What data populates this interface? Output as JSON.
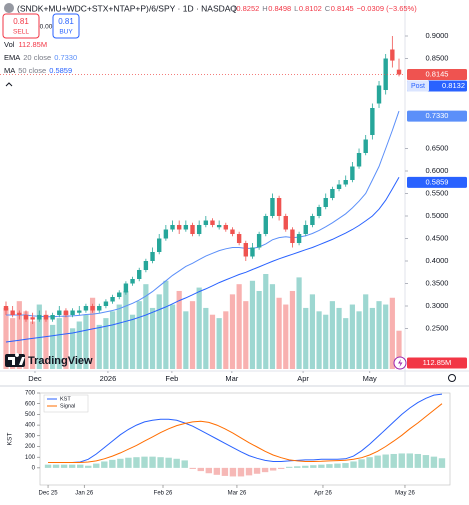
{
  "header": {
    "symbol": "(SNDK+MU+WDC+STX+NTAP+P)/6/SPY · 1D · NASDAQ",
    "ohlc_labels": [
      "O",
      "H",
      "L",
      "C"
    ],
    "change": "−0.0309 (−3.65%)",
    "sell": {
      "price": "0.81",
      "label": "SELL"
    },
    "spread": "0.00",
    "buy": {
      "price": "0.81",
      "label": "BUY"
    }
  },
  "branding": "TradingView",
  "chart_data": [
    {
      "type": "candlestick",
      "open": [
        0.3,
        0.29,
        0.285,
        0.28,
        0.275,
        0.27,
        0.28,
        0.27,
        0.28,
        0.29,
        0.28,
        0.285,
        0.29,
        0.3,
        0.29,
        0.3,
        0.31,
        0.32,
        0.33,
        0.35,
        0.36,
        0.38,
        0.4,
        0.42,
        0.45,
        0.47,
        0.48,
        0.47,
        0.48,
        0.46,
        0.48,
        0.49,
        0.475,
        0.48,
        0.47,
        0.46,
        0.44,
        0.41,
        0.43,
        0.46,
        0.5,
        0.54,
        0.5,
        0.47,
        0.44,
        0.46,
        0.48,
        0.5,
        0.52,
        0.54,
        0.56,
        0.57,
        0.58,
        0.61,
        0.64,
        0.68,
        0.75,
        0.78,
        0.87,
        0.8252
      ],
      "high": [
        0.31,
        0.3,
        0.29,
        0.29,
        0.285,
        0.29,
        0.29,
        0.285,
        0.3,
        0.295,
        0.295,
        0.3,
        0.305,
        0.305,
        0.305,
        0.315,
        0.325,
        0.335,
        0.355,
        0.365,
        0.385,
        0.405,
        0.43,
        0.46,
        0.48,
        0.49,
        0.49,
        0.49,
        0.485,
        0.49,
        0.5,
        0.495,
        0.49,
        0.485,
        0.475,
        0.465,
        0.445,
        0.44,
        0.465,
        0.505,
        0.55,
        0.545,
        0.505,
        0.475,
        0.465,
        0.49,
        0.505,
        0.525,
        0.55,
        0.565,
        0.58,
        0.59,
        0.62,
        0.65,
        0.68,
        0.75,
        0.8,
        0.86,
        0.9,
        0.8498
      ],
      "low": [
        0.28,
        0.275,
        0.27,
        0.265,
        0.26,
        0.265,
        0.265,
        0.265,
        0.275,
        0.275,
        0.275,
        0.28,
        0.285,
        0.285,
        0.285,
        0.295,
        0.305,
        0.315,
        0.325,
        0.345,
        0.355,
        0.375,
        0.395,
        0.415,
        0.445,
        0.465,
        0.46,
        0.465,
        0.455,
        0.455,
        0.475,
        0.475,
        0.47,
        0.465,
        0.455,
        0.435,
        0.4,
        0.405,
        0.425,
        0.455,
        0.495,
        0.49,
        0.465,
        0.43,
        0.435,
        0.455,
        0.475,
        0.495,
        0.515,
        0.535,
        0.555,
        0.565,
        0.575,
        0.605,
        0.635,
        0.67,
        0.74,
        0.77,
        0.83,
        0.8102
      ],
      "close": [
        0.29,
        0.28,
        0.28,
        0.27,
        0.27,
        0.28,
        0.27,
        0.28,
        0.29,
        0.28,
        0.29,
        0.29,
        0.3,
        0.29,
        0.3,
        0.31,
        0.32,
        0.33,
        0.35,
        0.36,
        0.38,
        0.4,
        0.42,
        0.45,
        0.47,
        0.48,
        0.47,
        0.48,
        0.46,
        0.48,
        0.49,
        0.48,
        0.48,
        0.47,
        0.46,
        0.44,
        0.41,
        0.43,
        0.46,
        0.5,
        0.54,
        0.5,
        0.47,
        0.44,
        0.46,
        0.48,
        0.5,
        0.52,
        0.54,
        0.56,
        0.57,
        0.58,
        0.61,
        0.64,
        0.67,
        0.74,
        0.79,
        0.85,
        0.8454,
        0.8145
      ],
      "up_color": "#26a69a",
      "down_color": "#ef5350",
      "volume": {
        "name": "Vol",
        "color": "#f23645",
        "values": [
          180,
          150,
          200,
          170,
          140,
          190,
          160,
          130,
          150,
          170,
          120,
          140,
          160,
          210,
          130,
          150,
          170,
          190,
          230,
          160,
          200,
          250,
          180,
          220,
          260,
          190,
          230,
          170,
          200,
          240,
          180,
          160,
          150,
          170,
          220,
          250,
          200,
          260,
          230,
          280,
          250,
          210,
          190,
          230,
          270,
          180,
          220,
          170,
          160,
          200,
          180,
          150,
          190,
          170,
          220,
          180,
          200,
          190,
          210,
          112.85
        ],
        "value_labels": [
          null,
          null,
          null,
          null,
          null,
          null,
          null,
          null,
          null,
          null,
          null,
          null,
          null,
          null,
          null,
          null,
          null,
          null,
          null,
          null,
          null,
          null,
          null,
          null,
          null,
          null,
          null,
          null,
          null,
          null,
          null,
          null,
          null,
          null,
          null,
          null,
          null,
          null,
          null,
          null,
          null,
          null,
          null,
          null,
          null,
          null,
          null,
          null,
          null,
          null,
          null,
          null,
          null,
          null,
          null,
          null,
          null,
          null,
          null,
          "112.85M"
        ]
      },
      "series": [
        {
          "name": "EMA",
          "params": "20 close",
          "color": "#5b8ff9",
          "values": [
            0.28,
            0.28,
            0.28,
            0.28,
            0.278,
            0.277,
            0.276,
            0.276,
            0.277,
            0.277,
            0.278,
            0.279,
            0.281,
            0.282,
            0.284,
            0.287,
            0.29,
            0.294,
            0.3,
            0.306,
            0.313,
            0.322,
            0.332,
            0.344,
            0.356,
            0.368,
            0.378,
            0.388,
            0.395,
            0.403,
            0.411,
            0.417,
            0.423,
            0.427,
            0.43,
            0.43,
            0.428,
            0.428,
            0.431,
            0.438,
            0.447,
            0.452,
            0.454,
            0.452,
            0.453,
            0.456,
            0.461,
            0.468,
            0.476,
            0.485,
            0.495,
            0.505,
            0.518,
            0.533,
            0.55,
            0.58,
            0.61,
            0.65,
            0.69,
            0.733
          ],
          "value_labels": [
            null,
            null,
            null,
            null,
            null,
            null,
            null,
            null,
            null,
            null,
            null,
            null,
            null,
            null,
            null,
            null,
            null,
            null,
            null,
            null,
            null,
            null,
            null,
            null,
            null,
            null,
            null,
            null,
            null,
            null,
            null,
            null,
            null,
            null,
            null,
            null,
            null,
            null,
            null,
            null,
            null,
            null,
            null,
            null,
            null,
            null,
            null,
            null,
            null,
            null,
            null,
            null,
            null,
            null,
            null,
            null,
            null,
            null,
            null,
            "0.7330"
          ]
        },
        {
          "name": "MA",
          "params": "50 close",
          "color": "#2962ff",
          "values": [
            0.22,
            0.222,
            0.224,
            0.226,
            0.228,
            0.23,
            0.232,
            0.234,
            0.236,
            0.238,
            0.24,
            0.243,
            0.246,
            0.249,
            0.252,
            0.255,
            0.258,
            0.262,
            0.266,
            0.27,
            0.275,
            0.28,
            0.286,
            0.292,
            0.298,
            0.305,
            0.312,
            0.318,
            0.325,
            0.332,
            0.338,
            0.345,
            0.352,
            0.358,
            0.364,
            0.37,
            0.375,
            0.381,
            0.387,
            0.393,
            0.399,
            0.405,
            0.41,
            0.415,
            0.42,
            0.425,
            0.43,
            0.436,
            0.442,
            0.448,
            0.455,
            0.462,
            0.47,
            0.479,
            0.489,
            0.5,
            0.515,
            0.535,
            0.56,
            0.5859
          ]
        }
      ],
      "post": {
        "label": "Post",
        "value": 0.8132,
        "color": "#2962ff"
      },
      "xlim": [
        -0.9,
        59.9
      ],
      "ylim": [
        0.16,
        0.94
      ],
      "yticks": [
        {
          "value": 0.25,
          "label": "0.2500"
        },
        {
          "value": 0.3,
          "label": "0.3000"
        },
        {
          "value": 0.35,
          "label": "0.3500"
        },
        {
          "value": 0.4,
          "label": "0.4000"
        },
        {
          "value": 0.45,
          "label": "0.4500"
        },
        {
          "value": 0.5,
          "label": "0.5000"
        },
        {
          "value": 0.55,
          "label": "0.5500"
        },
        {
          "value": 0.6,
          "label": "0.6000"
        },
        {
          "value": 0.65,
          "label": "0.6500"
        },
        {
          "value": 0.85,
          "label": "0.8500"
        },
        {
          "value": 0.9,
          "label": "0.9000"
        }
      ],
      "xticks": [
        {
          "value": 4.35,
          "label": "Dec"
        },
        {
          "value": 15.3,
          "label": "2026"
        },
        {
          "value": 24.9,
          "label": "Feb"
        },
        {
          "value": 33.9,
          "label": "Mar"
        },
        {
          "value": 44.6,
          "label": "Apr"
        },
        {
          "value": 54.6,
          "label": "May"
        }
      ]
    },
    {
      "type": "line",
      "ylabel": "KST",
      "x": [
        0,
        1,
        2,
        3,
        4,
        5,
        6,
        7,
        8,
        9,
        10,
        11,
        12,
        13,
        14,
        15,
        16,
        17,
        18,
        19,
        20,
        21,
        22,
        23,
        24,
        25,
        26,
        27,
        28,
        29,
        30,
        31,
        32,
        33,
        34,
        35,
        36,
        37,
        38,
        39,
        40,
        41,
        42,
        43,
        44,
        45,
        46,
        47,
        48,
        49
      ],
      "series": [
        {
          "name": "KST",
          "color": "#2962ff",
          "values": [
            50,
            50,
            50,
            50,
            55,
            80,
            130,
            190,
            250,
            310,
            360,
            400,
            430,
            445,
            455,
            455,
            445,
            420,
            390,
            350,
            310,
            270,
            230,
            190,
            150,
            115,
            90,
            70,
            60,
            60,
            65,
            70,
            75,
            75,
            80,
            80,
            80,
            85,
            110,
            160,
            220,
            290,
            360,
            430,
            500,
            560,
            610,
            650,
            680,
            690
          ]
        },
        {
          "name": "Signal",
          "color": "#ff6d00",
          "values": [
            50,
            50,
            50,
            50,
            50,
            55,
            65,
            85,
            110,
            140,
            175,
            210,
            250,
            290,
            330,
            365,
            395,
            415,
            430,
            435,
            425,
            400,
            365,
            325,
            280,
            235,
            195,
            155,
            120,
            95,
            75,
            65,
            60,
            60,
            62,
            65,
            68,
            72,
            80,
            95,
            120,
            155,
            200,
            250,
            305,
            365,
            420,
            480,
            540,
            600
          ]
        }
      ],
      "histogram": {
        "up_color": "#a8dbd0",
        "down_color": "#f6b8b6",
        "values": [
          30,
          30,
          30,
          30,
          30,
          20,
          40,
          60,
          75,
          85,
          95,
          100,
          105,
          105,
          100,
          95,
          85,
          70,
          -10,
          -30,
          -50,
          -65,
          -75,
          -80,
          -80,
          -70,
          -55,
          -40,
          -25,
          -10,
          10,
          15,
          20,
          25,
          30,
          35,
          40,
          45,
          60,
          80,
          100,
          115,
          125,
          130,
          135,
          135,
          130,
          120,
          105,
          90
        ]
      },
      "xlim": [
        -1,
        50
      ],
      "ylim": [
        -160,
        700
      ],
      "yticks": [
        0,
        100,
        200,
        300,
        400,
        500,
        600,
        700
      ],
      "xticks": [
        {
          "value": 0,
          "label": "Dec 25"
        },
        {
          "value": 4.5,
          "label": "Jan 26"
        },
        {
          "value": 14.3,
          "label": "Feb 26"
        },
        {
          "value": 23.5,
          "label": "Mar 26"
        },
        {
          "value": 34.2,
          "label": "Apr 26"
        },
        {
          "value": 44.4,
          "label": "May 26"
        }
      ]
    }
  ]
}
